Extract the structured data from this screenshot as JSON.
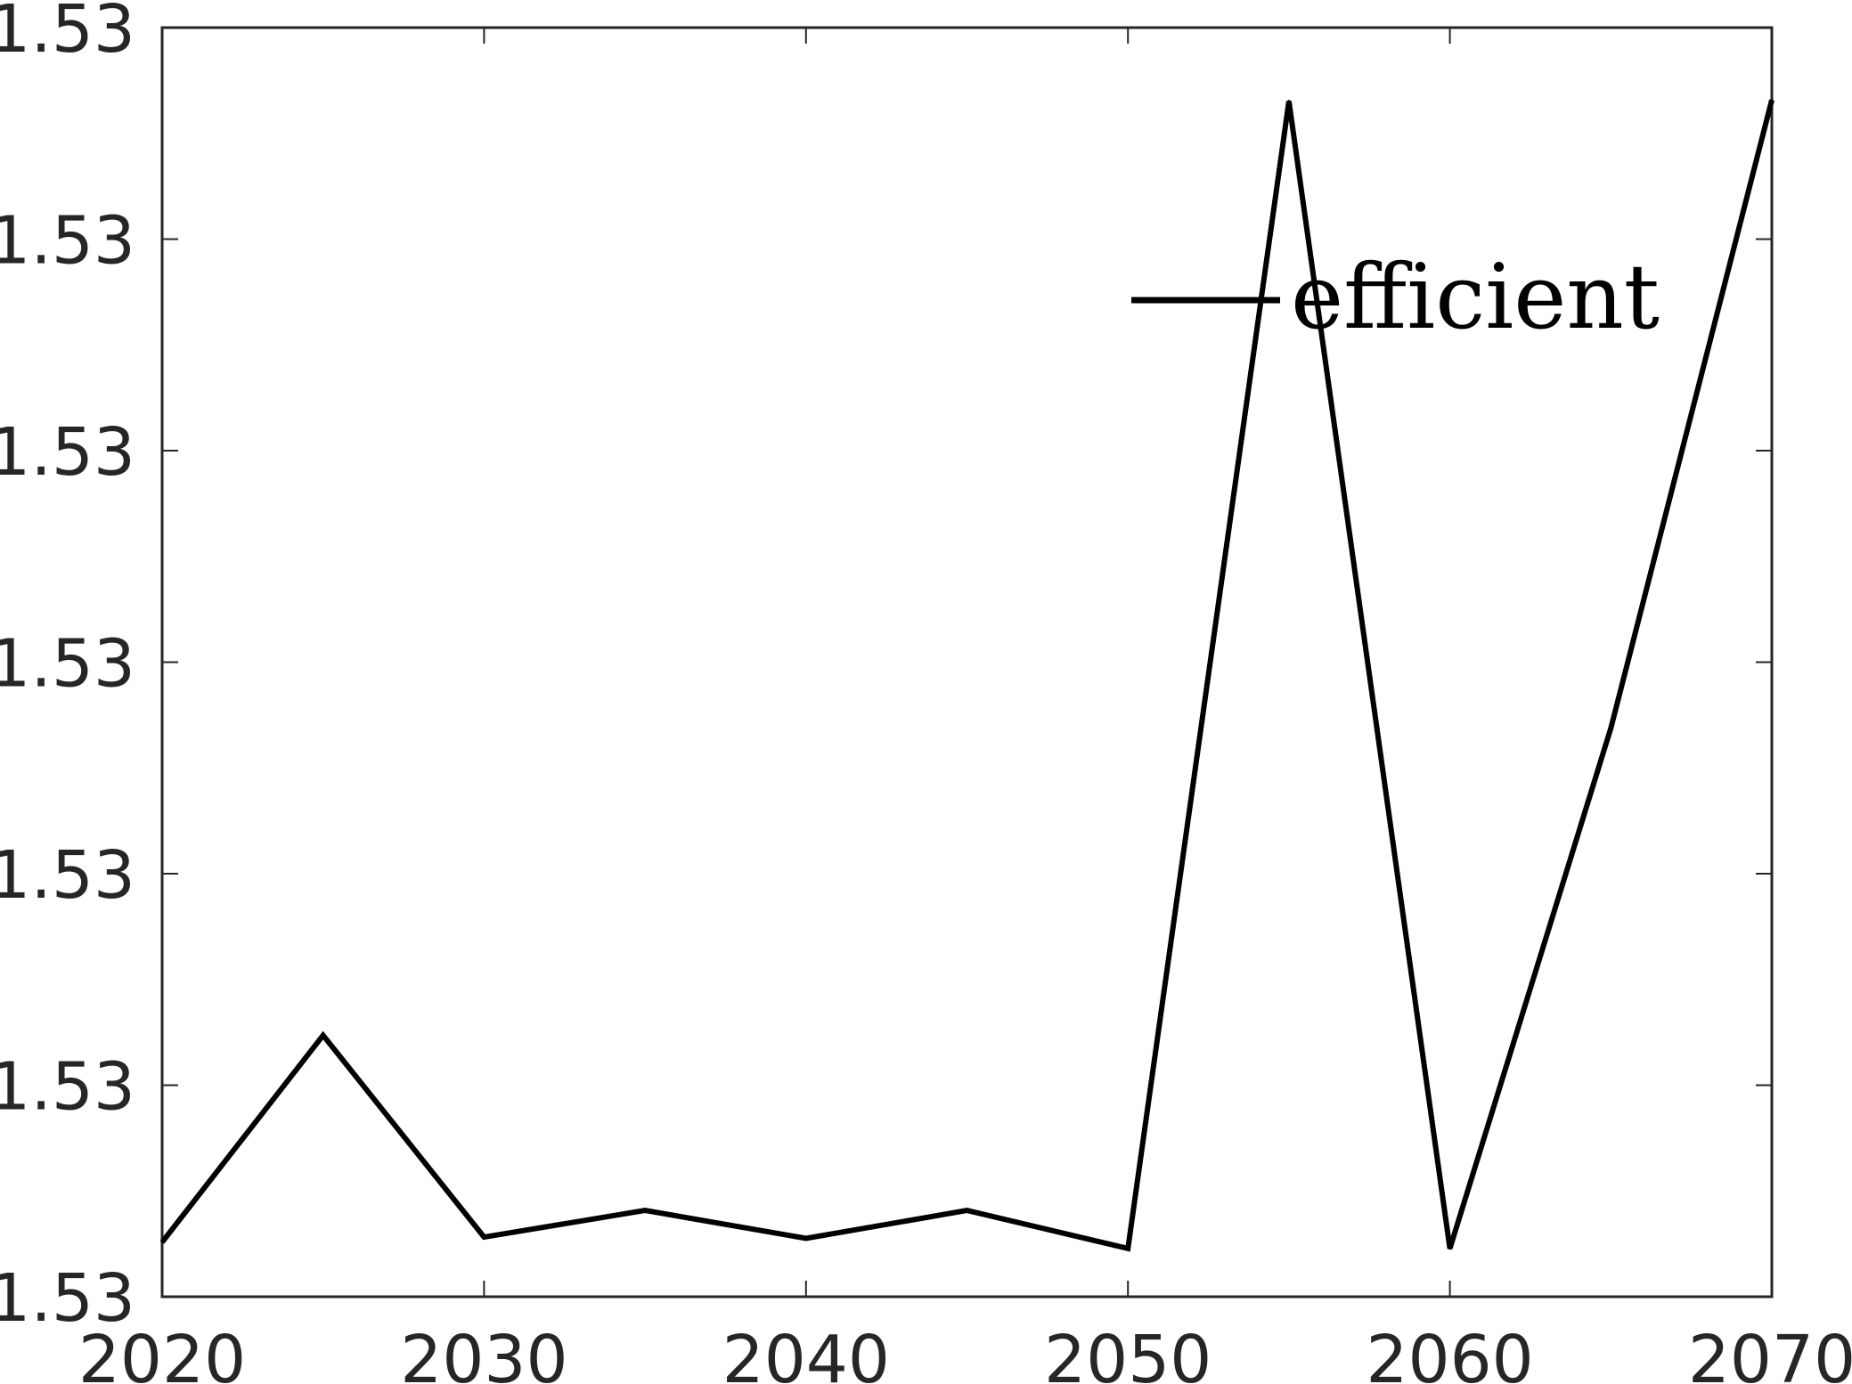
{
  "chart_data": {
    "type": "line",
    "title": "",
    "xlabel": "",
    "ylabel": "",
    "x": [
      2020,
      2025,
      2030,
      2035,
      2040,
      2045,
      2050,
      2055,
      2060,
      2065,
      2070
    ],
    "series": [
      {
        "name": "efficient",
        "color": "#000000",
        "values": [
          0.043,
          0.206,
          0.047,
          0.068,
          0.046,
          0.068,
          0.038,
          0.942,
          0.038,
          0.448,
          0.943
        ]
      }
    ],
    "xlim": [
      2020,
      2070
    ],
    "ylim": [
      0,
      1
    ],
    "x_ticks": [
      {
        "value": 2020,
        "label": "2020"
      },
      {
        "value": 2030,
        "label": "2030"
      },
      {
        "value": 2040,
        "label": "2040"
      },
      {
        "value": 2050,
        "label": "2050"
      },
      {
        "value": 2060,
        "label": "2060"
      },
      {
        "value": 2070,
        "label": "2070"
      }
    ],
    "y_ticks": [
      {
        "value": 0,
        "label": "1.53"
      },
      {
        "value": 0.1667,
        "label": "1.53"
      },
      {
        "value": 0.3333,
        "label": "1.53"
      },
      {
        "value": 0.5,
        "label": "1.53"
      },
      {
        "value": 0.6667,
        "label": "1.53"
      },
      {
        "value": 0.8333,
        "label": "1.53"
      },
      {
        "value": 1,
        "label": "1.53"
      }
    ],
    "grid": false,
    "legend": {
      "position": "top-right",
      "box": false
    },
    "axis_color": "#262626",
    "tick_label_color": "#262626"
  }
}
